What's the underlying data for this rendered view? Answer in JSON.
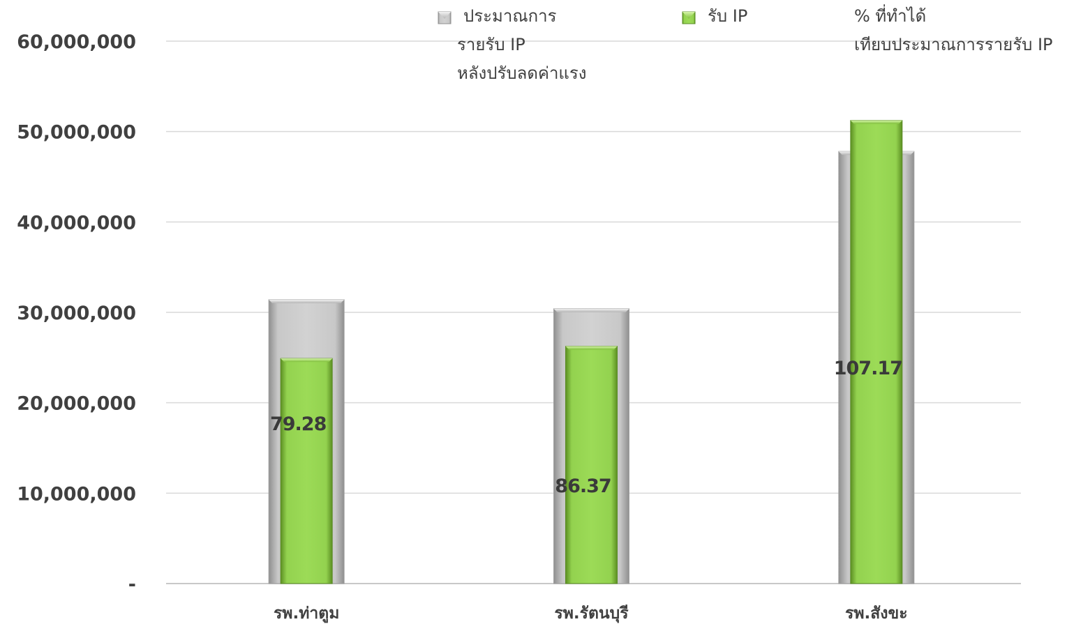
{
  "chart_data": {
    "type": "bar",
    "categories": [
      "รพ.ท่าตูม",
      "รพ.รัตนบุรี",
      "รพ.สังขะ"
    ],
    "series": [
      {
        "name": "ประมาณการรายรับ IP หลังปรับลดค่าแรง",
        "values": [
          31400000,
          30400000,
          47800000
        ],
        "color": "#c0c0c0"
      },
      {
        "name": "รับ IP",
        "values": [
          24900000,
          26250000,
          51230000
        ],
        "color": "#92d050"
      }
    ],
    "percent_series": {
      "name": "% ที่ทำได้เทียบประมาณการรายรับ IP",
      "values": [
        "79.28",
        "86.37",
        "107.17"
      ]
    },
    "ylim": [
      0,
      60000000
    ],
    "yticks": [
      0,
      10000000,
      20000000,
      30000000,
      40000000,
      50000000,
      60000000
    ],
    "ytick_labels": [
      "-",
      "10,000,000",
      "20,000,000",
      "30,000,000",
      "40,000,000",
      "50,000,000",
      "60,000,000"
    ],
    "grid": true,
    "legend_position": "top",
    "legend": [
      {
        "lines": [
          "ประมาณการ",
          "รายรับ IP",
          "หลังปรับลดค่าแรง"
        ],
        "marker": "gray"
      },
      {
        "lines": [
          "รับ IP"
        ],
        "marker": "green"
      },
      {
        "lines": [
          "% ที่ทำได้",
          "เทียบประมาณการรายรับ IP"
        ],
        "marker": "none"
      }
    ]
  }
}
